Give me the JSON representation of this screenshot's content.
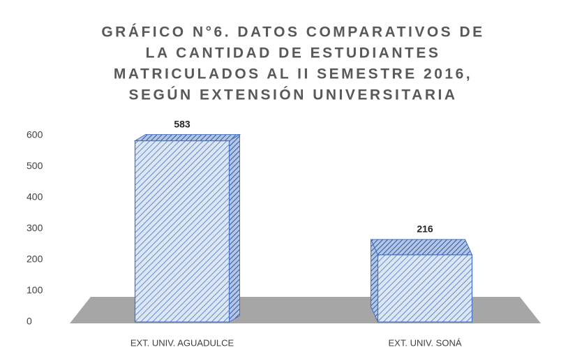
{
  "chart_data": {
    "type": "bar3d",
    "title": [
      "GRÁFICO N°6.  DATOS COMPARATIVOS DE",
      "LA CANTIDAD DE ESTUDIANTES",
      "MATRICULADOS AL II SEMESTRE 2016,",
      "SEGÚN EXTENSIÓN UNIVERSITARIA"
    ],
    "categories": [
      "EXT. UNIV. AGUADULCE",
      "EXT. UNIV. SONÁ"
    ],
    "values": [
      583,
      216
    ],
    "color": "#4472c4",
    "ylim": [
      0,
      600
    ],
    "yticks": [
      0,
      100,
      200,
      300,
      400,
      500,
      600
    ],
    "grid": false
  }
}
